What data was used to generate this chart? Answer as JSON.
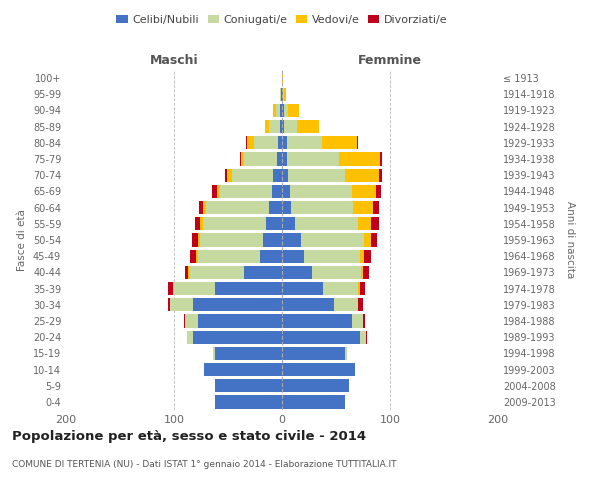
{
  "age_groups_top_to_bottom": [
    "100+",
    "95-99",
    "90-94",
    "85-89",
    "80-84",
    "75-79",
    "70-74",
    "65-69",
    "60-64",
    "55-59",
    "50-54",
    "45-49",
    "40-44",
    "35-39",
    "30-34",
    "25-29",
    "20-24",
    "15-19",
    "10-14",
    "5-9",
    "0-4"
  ],
  "birth_years_top_to_bottom": [
    "≤ 1913",
    "1914-1918",
    "1919-1923",
    "1924-1928",
    "1929-1933",
    "1934-1938",
    "1939-1943",
    "1944-1948",
    "1949-1953",
    "1954-1958",
    "1959-1963",
    "1964-1968",
    "1969-1973",
    "1974-1978",
    "1979-1983",
    "1984-1988",
    "1989-1993",
    "1994-1998",
    "1999-2003",
    "2004-2008",
    "2009-2013"
  ],
  "color_celibi": "#4472c4",
  "color_coniugati": "#c5d9a0",
  "color_vedovi": "#ffc000",
  "color_divorziati": "#c0001a",
  "title": "Popolazione per età, sesso e stato civile - 2014",
  "subtitle": "COMUNE DI TERTENIA (NU) - Dati ISTAT 1° gennaio 2014 - Elaborazione TUTTITALIA.IT",
  "xlabel_maschi": "Maschi",
  "xlabel_femmine": "Femmine",
  "ylabel_left": "Fasce di età",
  "ylabel_right": "Anni di nascita",
  "xlim": 200,
  "bg_color": "#ffffff",
  "grid_color": "#bbbbbb",
  "legend_labels": [
    "Celibi/Nubili",
    "Coniugati/e",
    "Vedovi/e",
    "Divorziati/e"
  ],
  "maschi_bottom_to_top": {
    "celibi": [
      62,
      62,
      72,
      62,
      82,
      78,
      82,
      62,
      35,
      20,
      18,
      15,
      12,
      9,
      8,
      5,
      4,
      2,
      2,
      1,
      0
    ],
    "coniugati": [
      0,
      0,
      0,
      2,
      6,
      12,
      22,
      38,
      50,
      58,
      58,
      58,
      58,
      48,
      38,
      30,
      22,
      10,
      4,
      1,
      0
    ],
    "vedovi": [
      0,
      0,
      0,
      0,
      0,
      0,
      0,
      1,
      2,
      2,
      2,
      3,
      3,
      3,
      5,
      3,
      6,
      4,
      2,
      0,
      0
    ],
    "divorziati": [
      0,
      0,
      0,
      0,
      0,
      1,
      2,
      5,
      3,
      5,
      5,
      5,
      4,
      5,
      2,
      1,
      1,
      0,
      0,
      0,
      0
    ]
  },
  "femmine_bottom_to_top": {
    "celibi": [
      58,
      62,
      68,
      58,
      72,
      65,
      48,
      38,
      28,
      20,
      18,
      12,
      8,
      7,
      6,
      5,
      5,
      2,
      2,
      1,
      0
    ],
    "coniugati": [
      0,
      0,
      0,
      2,
      6,
      10,
      22,
      32,
      45,
      52,
      58,
      58,
      58,
      58,
      52,
      48,
      32,
      12,
      4,
      1,
      0
    ],
    "vedovi": [
      0,
      0,
      0,
      0,
      0,
      0,
      0,
      2,
      2,
      4,
      6,
      12,
      18,
      22,
      32,
      38,
      32,
      20,
      10,
      2,
      1
    ],
    "divorziati": [
      0,
      0,
      0,
      0,
      1,
      2,
      5,
      5,
      6,
      6,
      6,
      8,
      6,
      5,
      3,
      2,
      1,
      0,
      0,
      0,
      0
    ]
  }
}
